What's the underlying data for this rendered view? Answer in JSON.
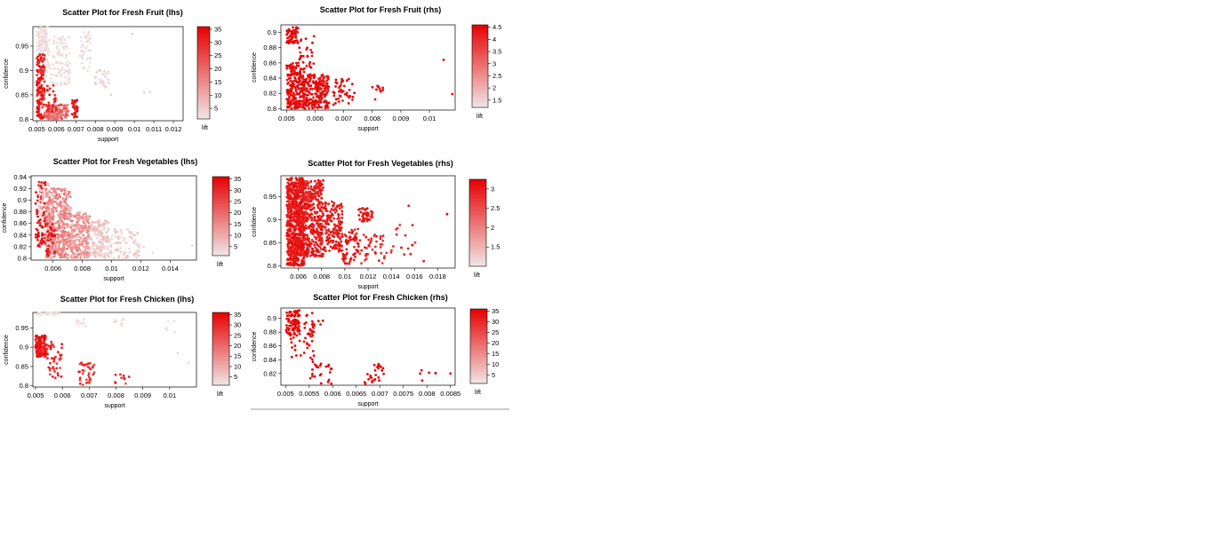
{
  "chart_data": [
    {
      "id": "fruit-lhs",
      "type": "scatter",
      "title": "Scatter Plot for Fresh Fruit (lhs)",
      "xlabel": "support",
      "ylabel": "confidence",
      "xlim": [
        0.0048,
        0.0125
      ],
      "ylim": [
        0.797,
        0.99
      ],
      "xticks": [
        0.005,
        0.006,
        0.007,
        0.008,
        0.009,
        0.01,
        0.011,
        0.012
      ],
      "yticks": [
        0.8,
        0.85,
        0.9,
        0.95
      ],
      "color_legend": {
        "label": "lift",
        "min": 1,
        "max": 36,
        "ticks": [
          5,
          10,
          15,
          20,
          25,
          30,
          35
        ]
      },
      "clusters": [
        {
          "x": [
            0.005,
            0.0056
          ],
          "y": [
            0.94,
            0.99
          ],
          "lift": [
            1,
            4
          ],
          "n": 90
        },
        {
          "x": [
            0.0052,
            0.0067
          ],
          "y": [
            0.87,
            0.97
          ],
          "lift": [
            1,
            4
          ],
          "n": 120
        },
        {
          "x": [
            0.0072,
            0.0078
          ],
          "y": [
            0.9,
            0.98
          ],
          "lift": [
            1,
            4
          ],
          "n": 40
        },
        {
          "x": [
            0.008,
            0.0087
          ],
          "y": [
            0.865,
            0.9
          ],
          "lift": [
            2,
            5
          ],
          "n": 25
        },
        {
          "x": [
            0.005,
            0.0054
          ],
          "y": [
            0.8,
            0.935
          ],
          "lift": [
            28,
            36
          ],
          "n": 150
        },
        {
          "x": [
            0.0054,
            0.0066
          ],
          "y": [
            0.8,
            0.83
          ],
          "lift": [
            14,
            26
          ],
          "n": 160
        },
        {
          "x": [
            0.0055,
            0.006
          ],
          "y": [
            0.815,
            0.87
          ],
          "lift": [
            28,
            36
          ],
          "n": 30
        },
        {
          "x": [
            0.0068,
            0.0071
          ],
          "y": [
            0.8,
            0.84
          ],
          "lift": [
            28,
            36
          ],
          "n": 35
        }
      ],
      "points": [
        {
          "x": 0.0105,
          "y": 0.855,
          "lift": 4
        },
        {
          "x": 0.0108,
          "y": 0.856,
          "lift": 4
        },
        {
          "x": 0.0099,
          "y": 0.975,
          "lift": 6
        },
        {
          "x": 0.0088,
          "y": 0.85,
          "lift": 4
        }
      ]
    },
    {
      "id": "fruit-rhs",
      "type": "scatter",
      "title": "Scatter Plot for Fresh Fruit (rhs)",
      "xlabel": "support",
      "ylabel": "confidence",
      "xlim": [
        0.0048,
        0.0109
      ],
      "ylim": [
        0.798,
        0.91
      ],
      "xticks": [
        0.005,
        0.006,
        0.007,
        0.008,
        0.009,
        0.01
      ],
      "yticks": [
        0.8,
        0.82,
        0.84,
        0.86,
        0.88,
        0.9
      ],
      "color_legend": {
        "label": "lift",
        "min": 1.2,
        "max": 4.6,
        "ticks": [
          1.5,
          2,
          2.5,
          3,
          3.5,
          4,
          4.5
        ]
      },
      "clusters": [
        {
          "x": [
            0.005,
            0.0054
          ],
          "y": [
            0.885,
            0.908
          ],
          "lift": [
            4.4,
            4.6
          ],
          "n": 60
        },
        {
          "x": [
            0.005,
            0.0055
          ],
          "y": [
            0.8,
            0.86
          ],
          "lift": [
            4.3,
            4.6
          ],
          "n": 180
        },
        {
          "x": [
            0.0055,
            0.0065
          ],
          "y": [
            0.8,
            0.845
          ],
          "lift": [
            4.2,
            4.6
          ],
          "n": 260
        },
        {
          "x": [
            0.0054,
            0.006
          ],
          "y": [
            0.84,
            0.895
          ],
          "lift": [
            4.2,
            4.6
          ],
          "n": 30
        },
        {
          "x": [
            0.0066,
            0.0074
          ],
          "y": [
            0.805,
            0.84
          ],
          "lift": [
            4.2,
            4.6
          ],
          "n": 45
        },
        {
          "x": [
            0.0079,
            0.0084
          ],
          "y": [
            0.822,
            0.83
          ],
          "lift": [
            4.3,
            4.6
          ],
          "n": 10
        }
      ],
      "points": [
        {
          "x": 0.0105,
          "y": 0.864,
          "lift": 4.6
        },
        {
          "x": 0.0108,
          "y": 0.819,
          "lift": 4.6
        },
        {
          "x": 0.0081,
          "y": 0.812,
          "lift": 4.4
        }
      ]
    },
    {
      "id": "veg-lhs",
      "type": "scatter",
      "title": "Scatter Plot for Fresh Vegetables (lhs)",
      "xlabel": "support",
      "ylabel": "confidence",
      "xlim": [
        0.0045,
        0.0158
      ],
      "ylim": [
        0.797,
        0.942
      ],
      "xticks": [
        0.006,
        0.008,
        0.01,
        0.012,
        0.014
      ],
      "yticks": [
        0.8,
        0.82,
        0.84,
        0.86,
        0.88,
        0.9,
        0.92,
        0.94
      ],
      "color_legend": {
        "label": "lift",
        "min": 1,
        "max": 36,
        "ticks": [
          5,
          10,
          15,
          20,
          25,
          30,
          35
        ]
      },
      "clusters": [
        {
          "x": [
            0.0048,
            0.0055
          ],
          "y": [
            0.82,
            0.935
          ],
          "lift": [
            30,
            36
          ],
          "n": 90
        },
        {
          "x": [
            0.005,
            0.0058
          ],
          "y": [
            0.87,
            0.93
          ],
          "lift": [
            3,
            8
          ],
          "n": 60
        },
        {
          "x": [
            0.0055,
            0.0072
          ],
          "y": [
            0.8,
            0.92
          ],
          "lift": [
            8,
            20
          ],
          "n": 420
        },
        {
          "x": [
            0.0072,
            0.0085
          ],
          "y": [
            0.8,
            0.88
          ],
          "lift": [
            8,
            18
          ],
          "n": 220
        },
        {
          "x": [
            0.0085,
            0.0098
          ],
          "y": [
            0.8,
            0.865
          ],
          "lift": [
            3,
            9
          ],
          "n": 130
        },
        {
          "x": [
            0.0098,
            0.012
          ],
          "y": [
            0.8,
            0.85
          ],
          "lift": [
            2,
            7
          ],
          "n": 80
        },
        {
          "x": [
            0.0055,
            0.0062
          ],
          "y": [
            0.805,
            0.86
          ],
          "lift": [
            28,
            36
          ],
          "n": 35
        }
      ],
      "points": [
        {
          "x": 0.0128,
          "y": 0.81,
          "lift": 3
        },
        {
          "x": 0.0155,
          "y": 0.822,
          "lift": 3
        },
        {
          "x": 0.0122,
          "y": 0.82,
          "lift": 3
        }
      ]
    },
    {
      "id": "veg-rhs",
      "type": "scatter",
      "title": "Scatter Plot for Fresh Vegetables (rhs)",
      "xlabel": "support",
      "ylabel": "confidence",
      "xlim": [
        0.0045,
        0.0195
      ],
      "ylim": [
        0.795,
        0.995
      ],
      "xticks": [
        0.006,
        0.008,
        0.01,
        0.012,
        0.014,
        0.016,
        0.018
      ],
      "yticks": [
        0.8,
        0.85,
        0.9,
        0.95
      ],
      "color_legend": {
        "label": "lift",
        "min": 1,
        "max": 3.25,
        "ticks": [
          1.5,
          2,
          2.5,
          3
        ]
      },
      "clusters": [
        {
          "x": [
            0.005,
            0.0065
          ],
          "y": [
            0.8,
            0.99
          ],
          "lift": [
            2.9,
            3.2
          ],
          "n": 700
        },
        {
          "x": [
            0.0062,
            0.0082
          ],
          "y": [
            0.82,
            0.985
          ],
          "lift": [
            2.8,
            3.2
          ],
          "n": 400
        },
        {
          "x": [
            0.0082,
            0.0098
          ],
          "y": [
            0.83,
            0.94
          ],
          "lift": [
            2.8,
            3.2
          ],
          "n": 160
        },
        {
          "x": [
            0.0098,
            0.0112
          ],
          "y": [
            0.8,
            0.88
          ],
          "lift": [
            2.8,
            3.2
          ],
          "n": 60
        },
        {
          "x": [
            0.0112,
            0.0124
          ],
          "y": [
            0.895,
            0.925
          ],
          "lift": [
            2.9,
            3.2
          ],
          "n": 40
        },
        {
          "x": [
            0.0112,
            0.0135
          ],
          "y": [
            0.8,
            0.87
          ],
          "lift": [
            2.6,
            3.1
          ],
          "n": 40
        },
        {
          "x": [
            0.0135,
            0.0162
          ],
          "y": [
            0.82,
            0.9
          ],
          "lift": [
            2.6,
            3.1
          ],
          "n": 18
        }
      ],
      "points": [
        {
          "x": 0.0188,
          "y": 0.912,
          "lift": 3.2
        },
        {
          "x": 0.0168,
          "y": 0.81,
          "lift": 3
        },
        {
          "x": 0.0155,
          "y": 0.93,
          "lift": 3
        }
      ]
    },
    {
      "id": "chicken-lhs",
      "type": "scatter",
      "title": "Scatter Plot for Fresh Chicken (lhs)",
      "xlabel": "support",
      "ylabel": "confidence",
      "xlim": [
        0.0049,
        0.011
      ],
      "ylim": [
        0.797,
        0.99
      ],
      "xticks": [
        0.005,
        0.006,
        0.007,
        0.008,
        0.009,
        0.01
      ],
      "yticks": [
        0.8,
        0.85,
        0.9,
        0.95
      ],
      "color_legend": {
        "label": "lift",
        "min": 1,
        "max": 36,
        "ticks": [
          5,
          10,
          15,
          20,
          25,
          30,
          35
        ]
      },
      "clusters": [
        {
          "x": [
            0.005,
            0.0059
          ],
          "y": [
            0.982,
            0.99
          ],
          "lift": [
            1,
            3
          ],
          "n": 30
        },
        {
          "x": [
            0.0065,
            0.0069
          ],
          "y": [
            0.955,
            0.975
          ],
          "lift": [
            1,
            3
          ],
          "n": 12
        },
        {
          "x": [
            0.0079,
            0.0083
          ],
          "y": [
            0.955,
            0.975
          ],
          "lift": [
            1,
            3
          ],
          "n": 8
        },
        {
          "x": [
            0.0098,
            0.0102
          ],
          "y": [
            0.93,
            0.97
          ],
          "lift": [
            1,
            3
          ],
          "n": 6
        },
        {
          "x": [
            0.005,
            0.0054
          ],
          "y": [
            0.875,
            0.93
          ],
          "lift": [
            30,
            36
          ],
          "n": 140
        },
        {
          "x": [
            0.0054,
            0.006
          ],
          "y": [
            0.82,
            0.915
          ],
          "lift": [
            25,
            35
          ],
          "n": 50
        },
        {
          "x": [
            0.0066,
            0.0072
          ],
          "y": [
            0.8,
            0.86
          ],
          "lift": [
            24,
            34
          ],
          "n": 35
        },
        {
          "x": [
            0.0079,
            0.0085
          ],
          "y": [
            0.805,
            0.83
          ],
          "lift": [
            24,
            34
          ],
          "n": 10
        }
      ],
      "points": [
        {
          "x": 0.0107,
          "y": 0.86,
          "lift": 3
        },
        {
          "x": 0.0103,
          "y": 0.885,
          "lift": 3
        }
      ]
    },
    {
      "id": "chicken-rhs",
      "type": "scatter",
      "title": "Scatter Plot for Fresh Chicken (rhs)",
      "xlabel": "support",
      "ylabel": "confidence",
      "xlim": [
        0.0049,
        0.0086
      ],
      "ylim": [
        0.803,
        0.915
      ],
      "xticks": [
        0.005,
        0.0055,
        0.006,
        0.0065,
        0.007,
        0.0075,
        0.008,
        0.0085
      ],
      "xticklabels": [
        "0.005",
        "0.0055",
        "0.006",
        "0.0065",
        "0.007",
        "0.0075",
        "0.008",
        "0.0085"
      ],
      "yticks": [
        0.82,
        0.84,
        0.86,
        0.88,
        0.9
      ],
      "color_legend": {
        "label": "lift",
        "min": 1,
        "max": 36,
        "ticks": [
          5,
          10,
          15,
          20,
          25,
          30,
          35
        ]
      },
      "clusters": [
        {
          "x": [
            0.005,
            0.0053
          ],
          "y": [
            0.875,
            0.912
          ],
          "lift": [
            34,
            36
          ],
          "n": 90
        },
        {
          "x": [
            0.0051,
            0.0056
          ],
          "y": [
            0.83,
            0.895
          ],
          "lift": [
            34,
            36
          ],
          "n": 30
        },
        {
          "x": [
            0.0054,
            0.0058
          ],
          "y": [
            0.87,
            0.91
          ],
          "lift": [
            34,
            36
          ],
          "n": 20
        },
        {
          "x": [
            0.0055,
            0.006
          ],
          "y": [
            0.805,
            0.84
          ],
          "lift": [
            34,
            36
          ],
          "n": 25
        },
        {
          "x": [
            0.0066,
            0.0071
          ],
          "y": [
            0.805,
            0.835
          ],
          "lift": [
            34,
            36
          ],
          "n": 25
        },
        {
          "x": [
            0.0078,
            0.0082
          ],
          "y": [
            0.81,
            0.825
          ],
          "lift": [
            34,
            36
          ],
          "n": 5
        }
      ],
      "points": [
        {
          "x": 0.0085,
          "y": 0.82,
          "lift": 35
        },
        {
          "x": 0.0079,
          "y": 0.81,
          "lift": 35
        }
      ]
    }
  ]
}
